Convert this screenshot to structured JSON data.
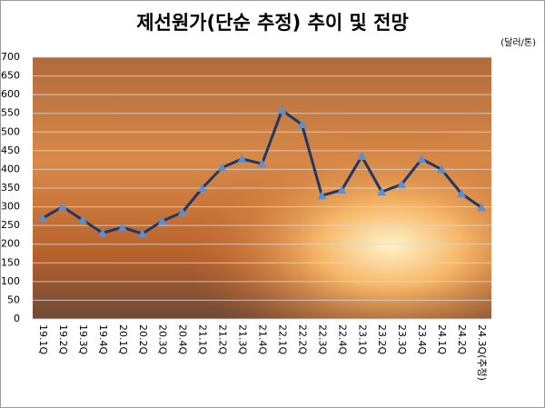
{
  "chart_data": {
    "type": "line",
    "title": "제선원가(단순 추정) 추이 및 전망",
    "unit": "(달러/톤)",
    "categories": [
      "19.1Q",
      "19.2Q",
      "19.3Q",
      "19.4Q",
      "20.1Q",
      "20.2Q",
      "20.3Q",
      "20.4Q",
      "21.1Q",
      "21.2Q",
      "21.3Q",
      "21.4Q",
      "22.1Q",
      "22.2Q",
      "22.3Q",
      "22.4Q",
      "23.1Q",
      "23.2Q",
      "23.3Q",
      "23.4Q",
      "24.1Q",
      "24.2Q",
      "24.3Q(추정)"
    ],
    "series": [
      {
        "name": "제선원가",
        "color": "#1f3864",
        "marker_color": "#5b8fd0",
        "values": [
          270,
          300,
          265,
          230,
          245,
          228,
          262,
          285,
          350,
          405,
          428,
          415,
          558,
          520,
          330,
          345,
          435,
          340,
          360,
          428,
          400,
          335,
          298
        ]
      }
    ],
    "ylim": [
      0,
      700
    ],
    "yticks": [
      0,
      50,
      100,
      150,
      200,
      250,
      300,
      350,
      400,
      450,
      500,
      550,
      600,
      650,
      700
    ],
    "grid": true
  }
}
